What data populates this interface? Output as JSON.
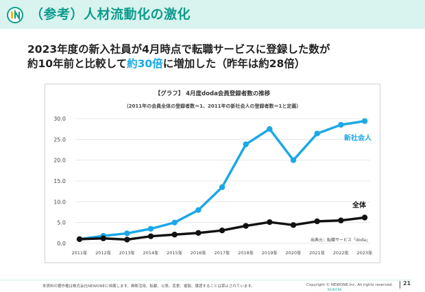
{
  "slide": {
    "title": "（参考）人材流動化の激化",
    "headline_line1": "2023年度の新入社員が4月時点で転職サービスに登録した数が",
    "headline_line2_pre": "約10年前と比較して",
    "headline_line2_highlight": "約30倍",
    "headline_line2_post": "に増加した（昨年は約28倍）",
    "page_number": "21"
  },
  "footer": {
    "note": "本資料の著作権は株式会社NEWONEに帰属します。無断活用、転載、公表、変更、複製、譲渡することは禁止されています。",
    "copyright": "Copyright © NEWONE,Inc. All rights reserved.",
    "brand_mark": "NEWONE"
  },
  "colors": {
    "title_bar": "#d9f3ef",
    "title_text": "#0e9c8c",
    "highlight": "#16a9e6",
    "series_new": "#1ba8e6",
    "series_all": "#111111"
  },
  "chart_data": {
    "type": "line",
    "title": "【グラフ】 4月度doda会員登録者数の推移",
    "subtitle": "（2011年の会員全体の登録者数＝1、2011年の新社会人の登録者数＝1と定義）",
    "source": "出典元：転職サービス「doda」",
    "categories": [
      "2011年",
      "2012年",
      "2013年",
      "2014年",
      "2015年",
      "2016年",
      "2017年",
      "2018年",
      "2019年",
      "2020年",
      "2021年",
      "2022年",
      "2023年"
    ],
    "ylim": [
      0,
      30
    ],
    "yticks": [
      "0.0",
      "5.0",
      "10.0",
      "15.0",
      "20.0",
      "25.0",
      "30.0"
    ],
    "grid": true,
    "series": [
      {
        "name": "新社会人",
        "values": [
          1.0,
          1.8,
          2.4,
          3.5,
          5.0,
          8.0,
          13.5,
          23.8,
          27.5,
          20.0,
          26.4,
          28.5,
          29.4
        ]
      },
      {
        "name": "全体",
        "values": [
          1.0,
          1.2,
          0.9,
          1.7,
          2.1,
          2.5,
          3.1,
          4.2,
          5.1,
          4.4,
          5.3,
          5.5,
          6.2
        ]
      }
    ]
  }
}
